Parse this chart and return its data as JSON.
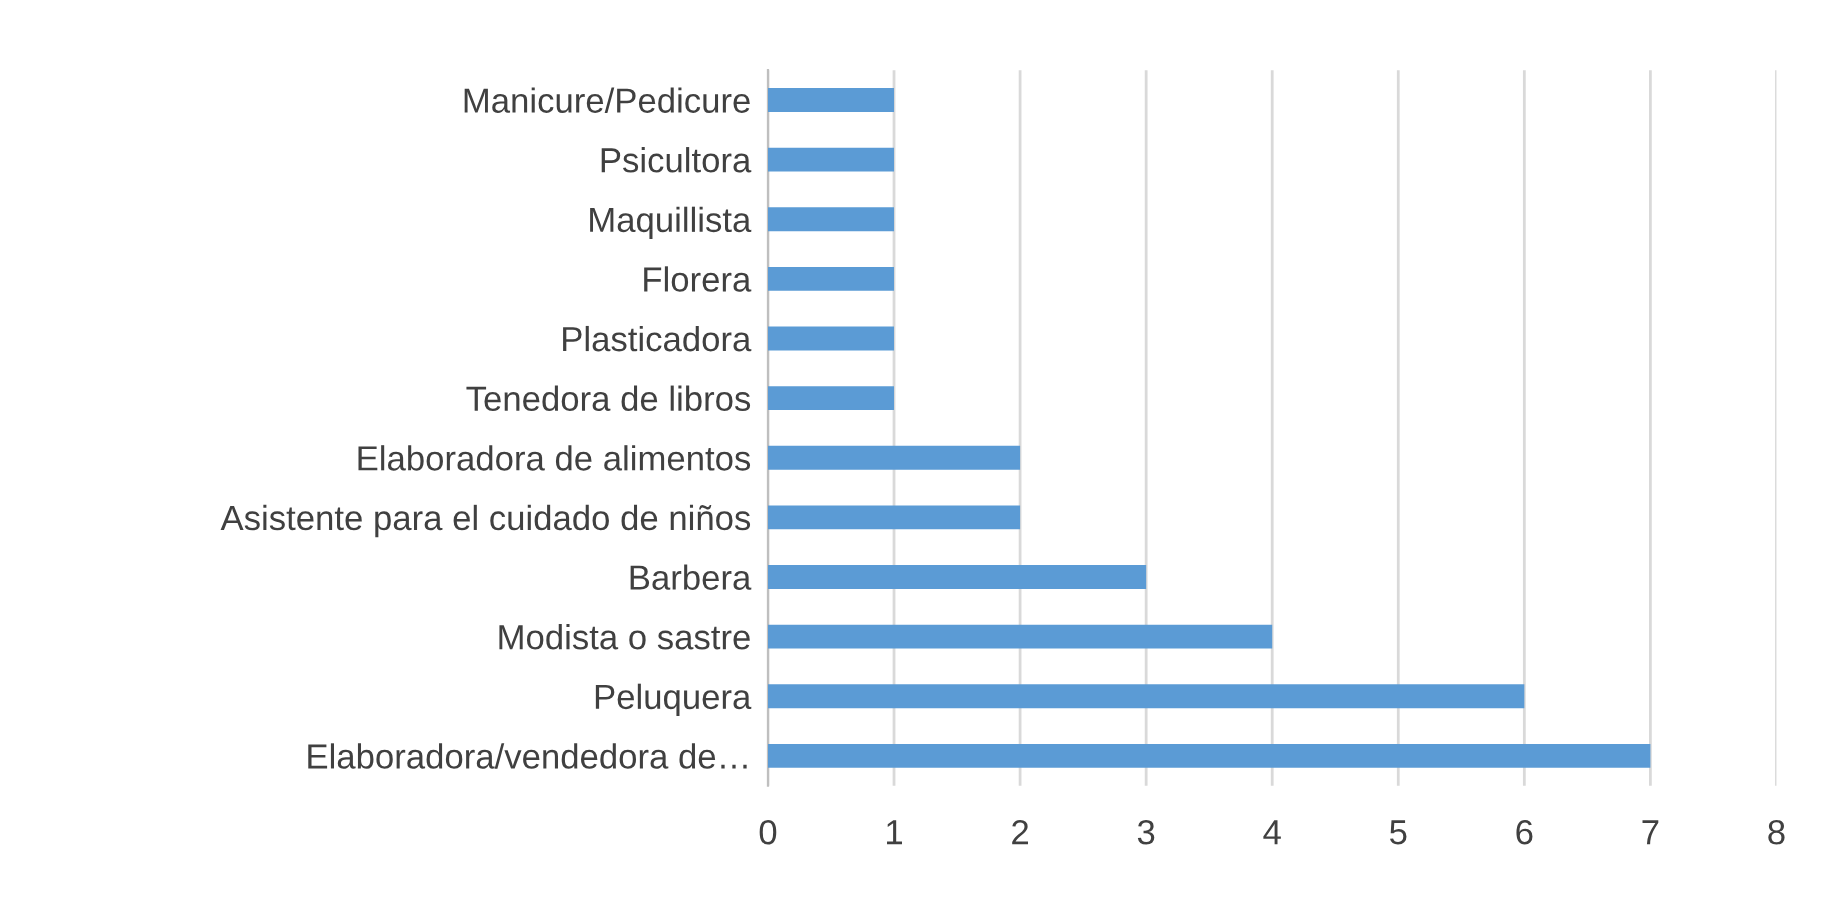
{
  "chart_data": {
    "type": "bar",
    "orientation": "horizontal",
    "categories": [
      "Manicure/Pedicure",
      "Psicultora",
      "Maquillista",
      "Florera",
      "Plasticadora",
      "Tenedora de libros",
      "Elaboradora de alimentos",
      "Asistente para el cuidado de niños",
      "Barbera",
      "Modista o sastre",
      "Peluquera",
      "Elaboradora/vendedora de…"
    ],
    "values": [
      1,
      1,
      1,
      1,
      1,
      1,
      2,
      2,
      3,
      4,
      6,
      7
    ],
    "color": "#5b9bd5",
    "xlim": [
      0,
      8
    ],
    "xticks": [
      0,
      1,
      2,
      3,
      4,
      5,
      6,
      7,
      8
    ],
    "grid": "x"
  }
}
